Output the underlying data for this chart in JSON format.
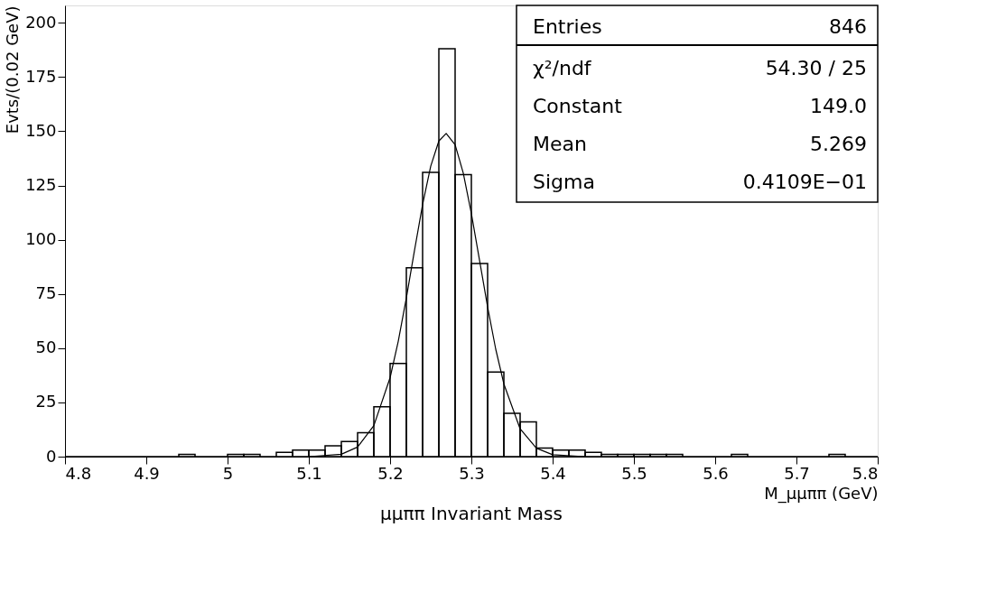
{
  "chart_data": {
    "type": "histogram",
    "title": "μμππ Invariant Mass",
    "xlabel": "M_μμππ (GeV)",
    "ylabel": "Evts/(0.02 GeV)",
    "bins": [
      4.8,
      4.82,
      4.84,
      4.86,
      4.88,
      4.9,
      4.92,
      4.94,
      4.96,
      4.98,
      5.0,
      5.02,
      5.04,
      5.06,
      5.08,
      5.1,
      5.12,
      5.14,
      5.16,
      5.18,
      5.2,
      5.22,
      5.24,
      5.26,
      5.28,
      5.3,
      5.32,
      5.34,
      5.36,
      5.38,
      5.4,
      5.42,
      5.44,
      5.46,
      5.48,
      5.5,
      5.52,
      5.54,
      5.56,
      5.58,
      5.6,
      5.62,
      5.64,
      5.66,
      5.68,
      5.7,
      5.72,
      5.74,
      5.76,
      5.78,
      5.8
    ],
    "values": [
      0,
      0,
      0,
      0,
      0,
      0,
      0,
      1,
      0,
      0,
      1,
      1,
      0,
      2,
      3,
      3,
      5,
      7,
      11,
      23,
      43,
      87,
      131,
      188,
      130,
      89,
      39,
      20,
      16,
      4,
      3,
      3,
      2,
      1,
      1,
      1,
      1,
      1,
      0,
      0,
      0,
      1,
      0,
      0,
      0,
      0,
      0,
      1,
      0,
      0
    ],
    "color": "#000000",
    "series": [
      {
        "type": "line",
        "color": "#000000",
        "x": [
          5.1,
          5.14,
          5.16,
          5.18,
          5.2,
          5.21,
          5.22,
          5.23,
          5.24,
          5.25,
          5.26,
          5.269,
          5.28,
          5.29,
          5.3,
          5.31,
          5.32,
          5.33,
          5.34,
          5.36,
          5.38,
          5.4,
          5.44
        ],
        "values": [
          0.0,
          1.1,
          4.4,
          14.3,
          36.4,
          53.1,
          73.2,
          95.0,
          116.2,
          133.9,
          145.5,
          149.0,
          143.8,
          130.8,
          112.1,
          90.6,
          69.0,
          49.5,
          33.5,
          12.8,
          3.9,
          0.9,
          0.0
        ]
      }
    ],
    "xlim": [
      4.8,
      5.8
    ],
    "ylim": [
      0,
      208
    ],
    "xticks": [
      4.8,
      4.9,
      5,
      5.1,
      5.2,
      5.3,
      5.4,
      5.5,
      5.6,
      5.7,
      5.8
    ],
    "yticks": [
      0,
      25,
      50,
      75,
      100,
      125,
      150,
      175,
      200
    ],
    "grid": false,
    "annotations": [
      "Entries",
      "846",
      "χ²/ndf",
      "54.30  /  25",
      "Constant",
      "149.0",
      "Mean",
      "5.269",
      "Sigma",
      "0.4109E−01"
    ]
  }
}
